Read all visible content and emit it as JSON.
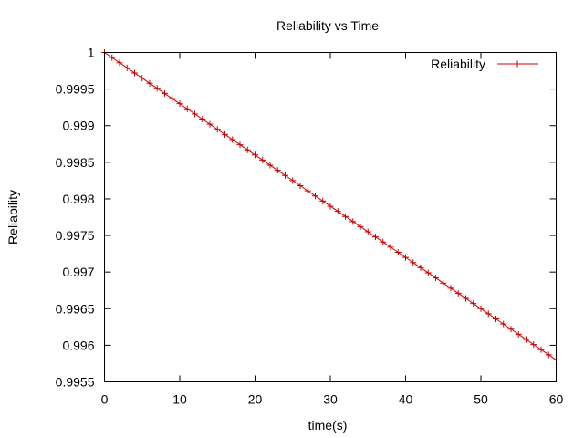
{
  "chart_data": {
    "type": "line",
    "title": "Reliability vs Time",
    "xlabel": "time(s)",
    "ylabel": "Reliability",
    "xlim": [
      0,
      60
    ],
    "ylim": [
      0.9955,
      1
    ],
    "x_ticks": [
      0,
      10,
      20,
      30,
      40,
      50,
      60
    ],
    "x_tick_labels": [
      "0",
      "10",
      "20",
      "30",
      "40",
      "50",
      "60"
    ],
    "y_ticks": [
      0.9955,
      0.996,
      0.9965,
      0.997,
      0.9975,
      0.998,
      0.9985,
      0.999,
      0.9995,
      1
    ],
    "y_tick_labels": [
      "0.9955",
      "0.996",
      "0.9965",
      "0.997",
      "0.9975",
      "0.998",
      "0.9985",
      "0.999",
      "0.9995",
      "1"
    ],
    "grid": false,
    "legend_position": "top-right",
    "series": [
      {
        "name": "Reliability",
        "color": "#cc0000",
        "marker": "plus",
        "x": [
          0,
          1,
          2,
          3,
          4,
          5,
          6,
          7,
          8,
          9,
          10,
          11,
          12,
          13,
          14,
          15,
          16,
          17,
          18,
          19,
          20,
          21,
          22,
          23,
          24,
          25,
          26,
          27,
          28,
          29,
          30,
          31,
          32,
          33,
          34,
          35,
          36,
          37,
          38,
          39,
          40,
          41,
          42,
          43,
          44,
          45,
          46,
          47,
          48,
          49,
          50,
          51,
          52,
          53,
          54,
          55,
          56,
          57,
          58,
          59,
          60
        ],
        "values": [
          1.0,
          0.99993,
          0.99986,
          0.99979,
          0.99972,
          0.99965,
          0.99958,
          0.99951,
          0.99944,
          0.99937,
          0.9993,
          0.99923,
          0.99916,
          0.99909,
          0.99902,
          0.99895,
          0.99888,
          0.99881,
          0.99874,
          0.99867,
          0.9986,
          0.99853,
          0.99846,
          0.99839,
          0.99832,
          0.99825,
          0.99818,
          0.99811,
          0.99804,
          0.99797,
          0.9979,
          0.99783,
          0.99776,
          0.99769,
          0.99762,
          0.99755,
          0.99748,
          0.99741,
          0.99734,
          0.99727,
          0.9972,
          0.99713,
          0.99706,
          0.99699,
          0.99692,
          0.99685,
          0.99678,
          0.99671,
          0.99664,
          0.99657,
          0.9965,
          0.99643,
          0.99636,
          0.99629,
          0.99622,
          0.99615,
          0.99608,
          0.99601,
          0.99594,
          0.99587,
          0.9958
        ]
      }
    ]
  }
}
